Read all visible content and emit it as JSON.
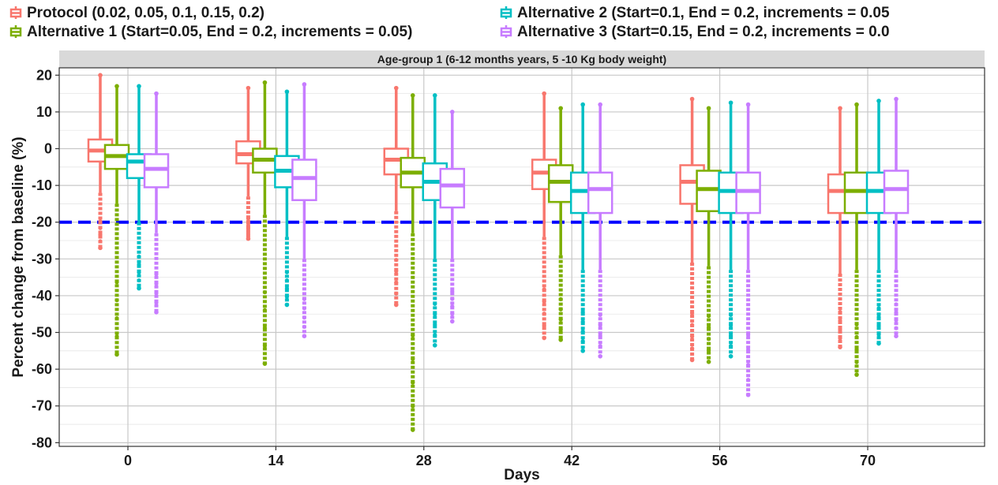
{
  "chart_data": {
    "type": "boxplot",
    "panel_title": "Age-group 1 (6-12 months years, 5 -10 Kg body weight)",
    "xlabel": "Days",
    "ylabel": "Percent change from baseline (%)",
    "ylim": [
      -81,
      22
    ],
    "yticks": [
      20,
      10,
      0,
      -10,
      -20,
      -30,
      -40,
      -50,
      -60,
      -70,
      -80
    ],
    "categories": [
      "0",
      "14",
      "28",
      "42",
      "56",
      "70"
    ],
    "reference_line": {
      "y": -20,
      "color": "#0000ff",
      "style": "dashed"
    },
    "grid": true,
    "legend_position": "top",
    "series": [
      {
        "name": "Protocol (0.02, 0.05, 0.1, 0.15, 0.2)",
        "color": "#f8766d",
        "boxes": [
          {
            "whisker_high": 20,
            "q3": 2.5,
            "median": -0.5,
            "q1": -3.5,
            "whisker_low": -12,
            "outlier_low": -27
          },
          {
            "whisker_high": 16.5,
            "q3": 2,
            "median": -1.5,
            "q1": -4,
            "whisker_low": -13,
            "outlier_low": -24.5
          },
          {
            "whisker_high": 16.5,
            "q3": 0,
            "median": -3,
            "q1": -7,
            "whisker_low": -17,
            "outlier_low": -42.5
          },
          {
            "whisker_high": 15,
            "q3": -3,
            "median": -6.5,
            "q1": -11,
            "whisker_low": -24,
            "outlier_low": -51.5
          },
          {
            "whisker_high": 13.5,
            "q3": -4.5,
            "median": -9,
            "q1": -15,
            "whisker_low": -31,
            "outlier_low": -57.5
          },
          {
            "whisker_high": 11,
            "q3": -7,
            "median": -11.5,
            "q1": -17.5,
            "whisker_low": -34,
            "outlier_low": -54
          }
        ]
      },
      {
        "name": "Alternative 1 (Start=0.05, End = 0.2, increments = 0.05)",
        "color": "#7cae00",
        "boxes": [
          {
            "whisker_high": 17,
            "q3": 1,
            "median": -2,
            "q1": -5.5,
            "whisker_low": -15,
            "outlier_low": -56
          },
          {
            "whisker_high": 18,
            "q3": 0,
            "median": -3,
            "q1": -6.5,
            "whisker_low": -18,
            "outlier_low": -58.5
          },
          {
            "whisker_high": 14.5,
            "q3": -2.5,
            "median": -6.5,
            "q1": -10.5,
            "whisker_low": -23,
            "outlier_low": -76.5
          },
          {
            "whisker_high": 11,
            "q3": -4.5,
            "median": -9,
            "q1": -14.5,
            "whisker_low": -29,
            "outlier_low": -52
          },
          {
            "whisker_high": 11,
            "q3": -6,
            "median": -11,
            "q1": -17,
            "whisker_low": -32,
            "outlier_low": -58
          },
          {
            "whisker_high": 12,
            "q3": -6.5,
            "median": -11.5,
            "q1": -17.5,
            "whisker_low": -33,
            "outlier_low": -61.5
          }
        ]
      },
      {
        "name": "Alternative 2 (Start=0.1, End = 0.2, increments = 0.05",
        "color": "#00bfc4",
        "boxes": [
          {
            "whisker_high": 17,
            "q3": -1.5,
            "median": -3.5,
            "q1": -8,
            "whisker_low": -20,
            "outlier_low": -38
          },
          {
            "whisker_high": 15.5,
            "q3": -2,
            "median": -6,
            "q1": -10.5,
            "whisker_low": -24,
            "outlier_low": -42.5
          },
          {
            "whisker_high": 14.5,
            "q3": -4,
            "median": -9,
            "q1": -14,
            "whisker_low": -30,
            "outlier_low": -53.5
          },
          {
            "whisker_high": 12,
            "q3": -6.5,
            "median": -11.5,
            "q1": -17.5,
            "whisker_low": -33,
            "outlier_low": -55
          },
          {
            "whisker_high": 12.5,
            "q3": -6.5,
            "median": -11.5,
            "q1": -17.5,
            "whisker_low": -33,
            "outlier_low": -56.5
          },
          {
            "whisker_high": 13,
            "q3": -6.5,
            "median": -11.5,
            "q1": -17.5,
            "whisker_low": -33,
            "outlier_low": -53
          }
        ]
      },
      {
        "name": "Alternative 3 (Start=0.15, End = 0.2, increments = 0.0",
        "color": "#c77cff",
        "boxes": [
          {
            "whisker_high": 15,
            "q3": -1.5,
            "median": -5.5,
            "q1": -10.5,
            "whisker_low": -23,
            "outlier_low": -44.5
          },
          {
            "whisker_high": 17.5,
            "q3": -3,
            "median": -8,
            "q1": -14,
            "whisker_low": -30,
            "outlier_low": -51
          },
          {
            "whisker_high": 10,
            "q3": -5.5,
            "median": -10,
            "q1": -16,
            "whisker_low": -30,
            "outlier_low": -47
          },
          {
            "whisker_high": 12,
            "q3": -6.5,
            "median": -11,
            "q1": -17.5,
            "whisker_low": -33,
            "outlier_low": -56.5
          },
          {
            "whisker_high": 12,
            "q3": -6.5,
            "median": -11.5,
            "q1": -17.5,
            "whisker_low": -33,
            "outlier_low": -67
          },
          {
            "whisker_high": 13.5,
            "q3": -6,
            "median": -11,
            "q1": -17.5,
            "whisker_low": -33,
            "outlier_low": -51
          }
        ]
      }
    ]
  }
}
